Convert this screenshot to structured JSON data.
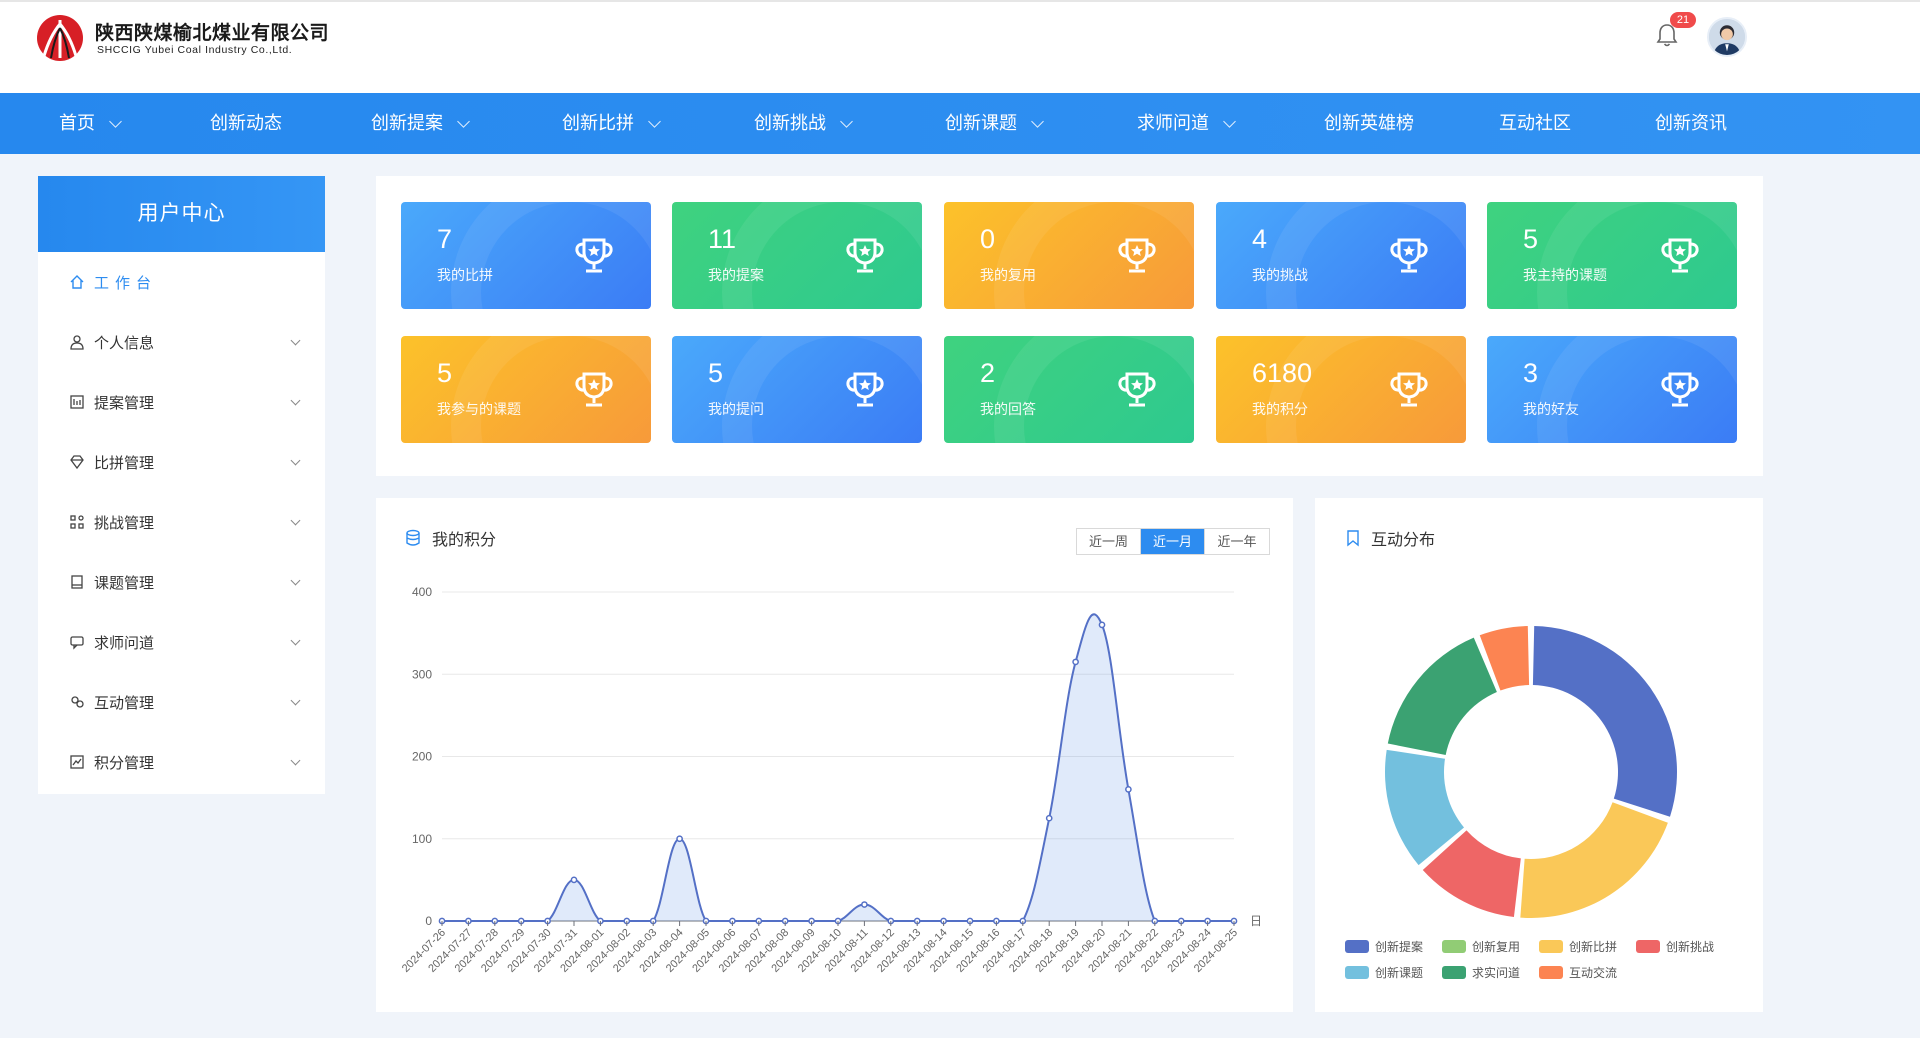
{
  "brand": {
    "name": "陕西陕煤榆北煤业有限公司",
    "name_en": "SHCCIG Yubei Coal Industry Co.,Ltd."
  },
  "header": {
    "notification_count": "21"
  },
  "nav": {
    "items": [
      {
        "label": "首页",
        "dropdown": true
      },
      {
        "label": "创新动态",
        "dropdown": false
      },
      {
        "label": "创新提案",
        "dropdown": true
      },
      {
        "label": "创新比拼",
        "dropdown": true
      },
      {
        "label": "创新挑战",
        "dropdown": true
      },
      {
        "label": "创新课题",
        "dropdown": true
      },
      {
        "label": "求师问道",
        "dropdown": true
      },
      {
        "label": "创新英雄榜",
        "dropdown": false
      },
      {
        "label": "互动社区",
        "dropdown": false
      },
      {
        "label": "创新资讯",
        "dropdown": false
      }
    ]
  },
  "sidebar": {
    "title": "用户中心",
    "items": [
      {
        "label": "工作台",
        "icon": "home-icon",
        "active": true
      },
      {
        "label": "个人信息",
        "icon": "user-icon"
      },
      {
        "label": "提案管理",
        "icon": "document-icon"
      },
      {
        "label": "比拼管理",
        "icon": "diamond-icon"
      },
      {
        "label": "挑战管理",
        "icon": "grid-icon"
      },
      {
        "label": "课题管理",
        "icon": "book-icon"
      },
      {
        "label": "求师问道",
        "icon": "chat-icon"
      },
      {
        "label": "互动管理",
        "icon": "interaction-icon"
      },
      {
        "label": "积分管理",
        "icon": "chart-icon"
      }
    ]
  },
  "stats": [
    {
      "value": "7",
      "label": "我的比拼",
      "theme": "blue"
    },
    {
      "value": "11",
      "label": "我的提案",
      "theme": "green"
    },
    {
      "value": "0",
      "label": "我的复用",
      "theme": "orange"
    },
    {
      "value": "4",
      "label": "我的挑战",
      "theme": "blue"
    },
    {
      "value": "5",
      "label": "我主持的课题",
      "theme": "green"
    },
    {
      "value": "5",
      "label": "我参与的课题",
      "theme": "orange"
    },
    {
      "value": "5",
      "label": "我的提问",
      "theme": "blue"
    },
    {
      "value": "2",
      "label": "我的回答",
      "theme": "green"
    },
    {
      "value": "6180",
      "label": "我的积分",
      "theme": "orange"
    },
    {
      "value": "3",
      "label": "我的好友",
      "theme": "blue"
    }
  ],
  "points_panel": {
    "title": "我的积分",
    "tabs": [
      {
        "label": "近一周",
        "active": false
      },
      {
        "label": "近一月",
        "active": true
      },
      {
        "label": "近一年",
        "active": false
      }
    ]
  },
  "distribution_panel": {
    "title": "互动分布"
  },
  "chart_data": [
    {
      "type": "area",
      "xlabel": "日",
      "ylabel": "",
      "ylim": [
        0,
        400
      ],
      "yticks": [
        0,
        100,
        200,
        300,
        400
      ],
      "grid": true,
      "smooth": true,
      "color": "#5470c6",
      "x": [
        "2024-07-26",
        "2024-07-27",
        "2024-07-28",
        "2024-07-29",
        "2024-07-30",
        "2024-07-31",
        "2024-08-01",
        "2024-08-02",
        "2024-08-03",
        "2024-08-04",
        "2024-08-05",
        "2024-08-06",
        "2024-08-07",
        "2024-08-08",
        "2024-08-09",
        "2024-08-10",
        "2024-08-11",
        "2024-08-12",
        "2024-08-13",
        "2024-08-14",
        "2024-08-15",
        "2024-08-16",
        "2024-08-17",
        "2024-08-18",
        "2024-08-19",
        "2024-08-20",
        "2024-08-21",
        "2024-08-22",
        "2024-08-23",
        "2024-08-24",
        "2024-08-25"
      ],
      "values": [
        0,
        0,
        0,
        0,
        0,
        50,
        0,
        0,
        0,
        100,
        0,
        0,
        0,
        0,
        0,
        0,
        20,
        0,
        0,
        0,
        0,
        0,
        0,
        125,
        315,
        360,
        160,
        0,
        0,
        0,
        0
      ]
    },
    {
      "type": "pie",
      "variant": "donut",
      "legend_position": "bottom",
      "series": [
        {
          "name": "创新提案",
          "value": 30,
          "color": "#5470c6"
        },
        {
          "name": "创新复用",
          "value": 0,
          "color": "#91cc75"
        },
        {
          "name": "创新比拼",
          "value": 21,
          "color": "#fac858"
        },
        {
          "name": "创新挑战",
          "value": 12,
          "color": "#ee6666"
        },
        {
          "name": "创新课题",
          "value": 14,
          "color": "#73c0de"
        },
        {
          "name": "求实问道",
          "value": 16,
          "color": "#3ba272"
        },
        {
          "name": "互动交流",
          "value": 6,
          "color": "#fc8452"
        }
      ]
    }
  ]
}
